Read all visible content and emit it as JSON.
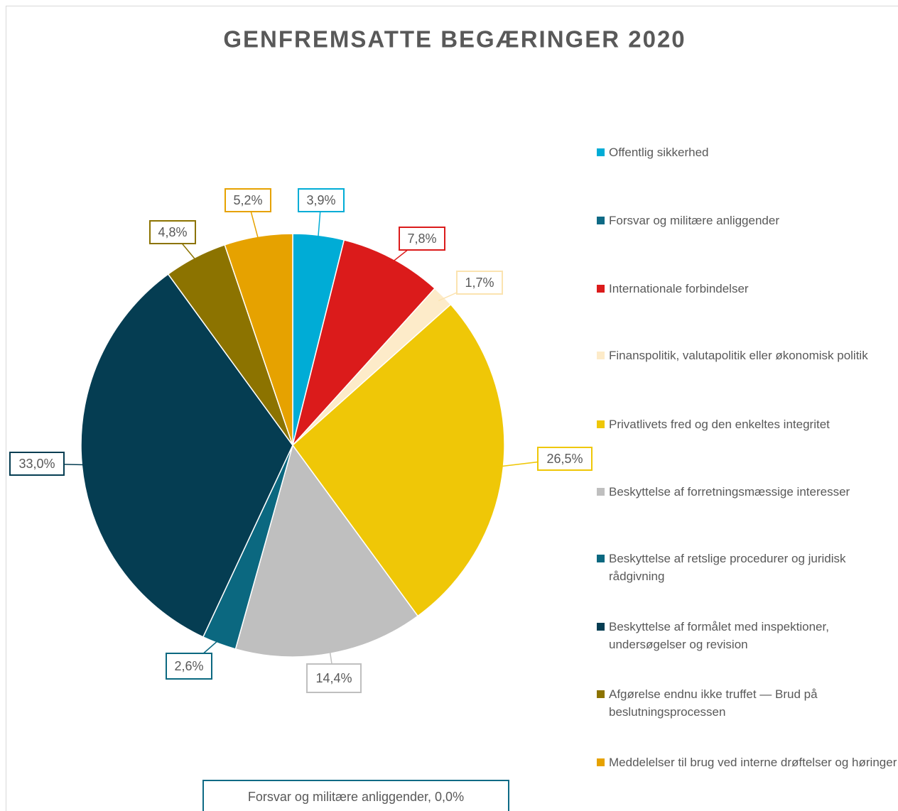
{
  "chart_data": {
    "type": "pie",
    "title": "GENFREMSATTE BEGÆRINGER 2020",
    "categories": [
      "Offentlig sikkerhed",
      "Forsvar og militære anliggender",
      "Internationale forbindelser",
      "Finanspolitik, valutapolitik eller økonomisk politik",
      "Privatlivets fred og den enkeltes integritet",
      "Beskyttelse af forretningsmæssige interesser",
      "Beskyttelse af retslige procedurer og juridisk rådgivning",
      "Beskyttelse af formålet med inspektioner, undersøgelser og revision",
      "Afgørelse endnu ikke truffet — Brud på beslutningsprocessen",
      "Meddelelser til brug ved interne drøftelser og høringer"
    ],
    "values": [
      3.9,
      0.0,
      7.8,
      1.7,
      26.5,
      14.4,
      2.6,
      33.0,
      4.8,
      5.2
    ],
    "value_labels": [
      "3,9%",
      "Forsvar og militære anliggender, 0,0%",
      "7,8%",
      "1,7%",
      "26,5%",
      "14,4%",
      "2,6%",
      "33,0%",
      "4,8%",
      "5,2%"
    ],
    "colors": [
      "#00acd6",
      "#0e6a85",
      "#db1b1b",
      "#fdebc9",
      "#efc707",
      "#bfbfbf",
      "#0b6880",
      "#053d52",
      "#8c7300",
      "#e6a200"
    ],
    "legend": "right"
  }
}
